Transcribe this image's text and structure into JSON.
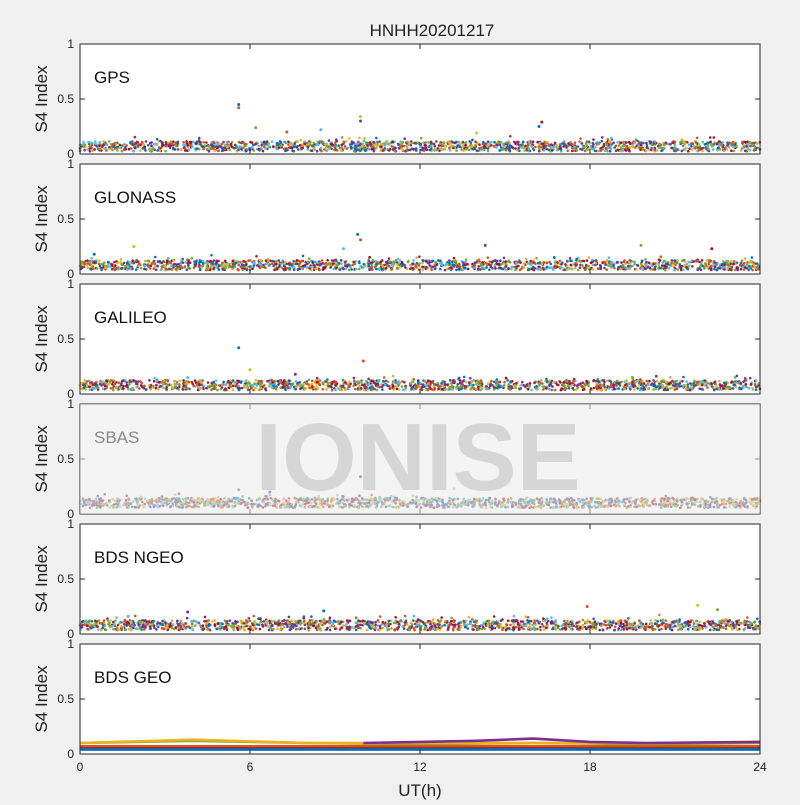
{
  "figure_title": "HNHH20201217",
  "watermark": "IONISE",
  "xlabel": "UT(h)",
  "ylabel": "S4 Index",
  "x_ticks": [
    "0",
    "6",
    "12",
    "18",
    "24"
  ],
  "y_ticks": [
    "0",
    "0.5",
    "1"
  ],
  "colors": [
    "#0072BD",
    "#D95319",
    "#EDB120",
    "#7E2F8E",
    "#77AC30",
    "#4DBEEE",
    "#A2142F"
  ],
  "chart_data": [
    {
      "type": "scatter",
      "title": "GPS",
      "xlim": [
        0,
        24
      ],
      "ylim": [
        0,
        1
      ],
      "typical_s4": 0.07,
      "spikes": [
        {
          "x": 5.6,
          "y": 0.45
        },
        {
          "x": 5.6,
          "y": 0.42
        },
        {
          "x": 9.9,
          "y": 0.34
        },
        {
          "x": 9.9,
          "y": 0.3
        },
        {
          "x": 6.2,
          "y": 0.24
        },
        {
          "x": 8.5,
          "y": 0.22
        },
        {
          "x": 16.3,
          "y": 0.29
        },
        {
          "x": 16.2,
          "y": 0.25
        },
        {
          "x": 7.3,
          "y": 0.2
        },
        {
          "x": 14.0,
          "y": 0.19
        }
      ]
    },
    {
      "type": "scatter",
      "title": "GLONASS",
      "xlim": [
        0,
        24
      ],
      "ylim": [
        0,
        1
      ],
      "typical_s4": 0.08,
      "spikes": [
        {
          "x": 9.8,
          "y": 0.36
        },
        {
          "x": 9.9,
          "y": 0.31
        },
        {
          "x": 1.9,
          "y": 0.25
        },
        {
          "x": 14.3,
          "y": 0.26
        },
        {
          "x": 19.8,
          "y": 0.26
        },
        {
          "x": 9.3,
          "y": 0.23
        },
        {
          "x": 22.3,
          "y": 0.23
        },
        {
          "x": 0.5,
          "y": 0.18
        }
      ]
    },
    {
      "type": "scatter",
      "title": "GALILEO",
      "xlim": [
        0,
        24
      ],
      "ylim": [
        0,
        1
      ],
      "typical_s4": 0.08,
      "spikes": [
        {
          "x": 5.6,
          "y": 0.42
        },
        {
          "x": 10.0,
          "y": 0.3
        },
        {
          "x": 6.0,
          "y": 0.22
        },
        {
          "x": 7.6,
          "y": 0.18
        },
        {
          "x": 19.5,
          "y": 0.15
        },
        {
          "x": 3.8,
          "y": 0.15
        }
      ]
    },
    {
      "type": "scatter",
      "title": "SBAS",
      "xlim": [
        0,
        24
      ],
      "ylim": [
        0,
        1
      ],
      "typical_s4": 0.1,
      "spikes": [
        {
          "x": 9.9,
          "y": 0.34
        },
        {
          "x": 5.6,
          "y": 0.22
        },
        {
          "x": 13.2,
          "y": 0.23
        },
        {
          "x": 6.7,
          "y": 0.2
        }
      ]
    },
    {
      "type": "scatter",
      "title": "BDS NGEO",
      "xlim": [
        0,
        24
      ],
      "ylim": [
        0,
        1
      ],
      "typical_s4": 0.08,
      "spikes": [
        {
          "x": 8.6,
          "y": 0.21
        },
        {
          "x": 17.9,
          "y": 0.25
        },
        {
          "x": 21.8,
          "y": 0.26
        },
        {
          "x": 3.8,
          "y": 0.2
        },
        {
          "x": 22.5,
          "y": 0.22
        },
        {
          "x": 1.7,
          "y": 0.16
        }
      ]
    },
    {
      "type": "line",
      "title": "BDS GEO",
      "xlim": [
        0,
        24
      ],
      "ylim": [
        0,
        1
      ],
      "series": [
        {
          "x": [
            0,
            4,
            8,
            12,
            16,
            20,
            24
          ],
          "y": [
            0.1,
            0.12,
            0.1,
            0.09,
            0.1,
            0.09,
            0.1
          ]
        },
        {
          "x": [
            0,
            4,
            8,
            12,
            16,
            20,
            24
          ],
          "y": [
            0.1,
            0.13,
            0.1,
            0.1,
            0.1,
            0.1,
            0.11
          ]
        },
        {
          "x": [
            10,
            12,
            14,
            16,
            18,
            20,
            24
          ],
          "y": [
            0.1,
            0.11,
            0.12,
            0.14,
            0.11,
            0.1,
            0.11
          ]
        },
        {
          "x": [
            0,
            6,
            12,
            18,
            24
          ],
          "y": [
            0.07,
            0.07,
            0.07,
            0.07,
            0.07
          ]
        },
        {
          "x": [
            0,
            6,
            12,
            18,
            24
          ],
          "y": [
            0.05,
            0.05,
            0.05,
            0.05,
            0.05
          ]
        },
        {
          "x": [
            0,
            6,
            12,
            18,
            24
          ],
          "y": [
            0.04,
            0.04,
            0.04,
            0.04,
            0.04
          ]
        }
      ]
    }
  ]
}
